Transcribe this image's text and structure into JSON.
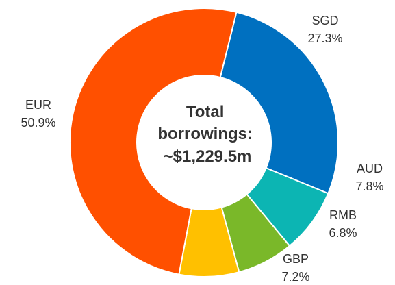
{
  "chart_data": {
    "type": "pie",
    "variant": "donut",
    "center_label": [
      "Total",
      "borrowings:",
      "~$1,229.5m"
    ],
    "slices": [
      {
        "label": "SGD",
        "value": 27.3,
        "value_label": "27.3%",
        "color": "#0070C0"
      },
      {
        "label": "AUD",
        "value": 7.8,
        "value_label": "7.8%",
        "color": "#0CB5B3"
      },
      {
        "label": "RMB",
        "value": 6.8,
        "value_label": "6.8%",
        "color": "#7AB829"
      },
      {
        "label": "GBP",
        "value": 7.2,
        "value_label": "7.2%",
        "color": "#FFC000"
      },
      {
        "label": "EUR",
        "value": 50.9,
        "value_label": "50.9%",
        "color": "#FF5000"
      }
    ],
    "legend": "none",
    "labels_placement": "outside"
  }
}
